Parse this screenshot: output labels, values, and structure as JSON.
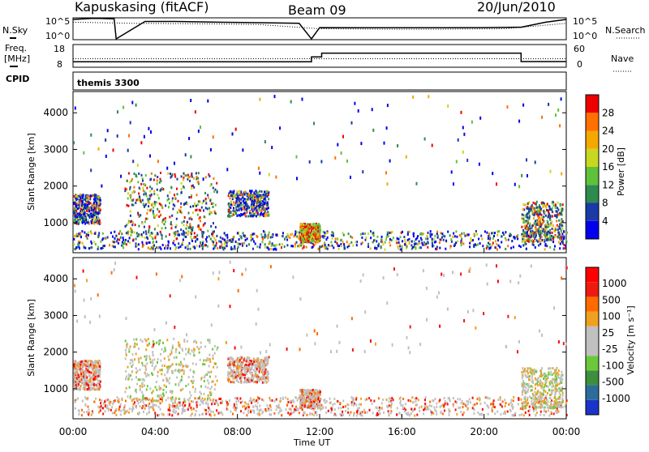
{
  "header": {
    "station": "Kapuskasing (fitACF)",
    "beam": "Beam 09",
    "date": "20/Jun/2010"
  },
  "top_panels": {
    "nsky_label": "N.Sky",
    "nsearch_label": "N.Search",
    "freq_label": "Freq.",
    "freq_unit": "[MHz]",
    "nave_label": "Nave",
    "cpid_label": "CPID",
    "cpid_value": "themis 3300",
    "noise_ticks": [
      "10^5",
      "10^0"
    ],
    "freq_ticks": [
      "18",
      "8"
    ],
    "nave_ticks": [
      "60",
      "0"
    ]
  },
  "colors": {
    "frame": "#000000",
    "power_scale": [
      "#0000ee",
      "#1a3aa8",
      "#2e8a4e",
      "#5fc23a",
      "#c8d820",
      "#f7a800",
      "#ff7000",
      "#ee0000"
    ],
    "velocity_scale": [
      "#1a34c8",
      "#2c6c9c",
      "#3d8f3d",
      "#6bc83a",
      "#c0c0c0",
      "#c0c0c0",
      "#f0a020",
      "#ff6a00",
      "#ee1a10",
      "#ff0000"
    ]
  },
  "chart_data": [
    {
      "type": "heatmap",
      "title": "",
      "ylabel": "Slant Range [km]",
      "xlabel": "",
      "quantity": "Power",
      "colorbar_label": "Power [dB]",
      "colorbar_ticks": [
        "28",
        "24",
        "20",
        "16",
        "12",
        "8",
        "4"
      ],
      "ylim": [
        180,
        4580
      ],
      "yticks": [
        "4000",
        "3000",
        "2000",
        "1000"
      ],
      "xlim": [
        0,
        24
      ],
      "xticks": [
        "00:00",
        "04:00",
        "08:00",
        "12:00",
        "16:00",
        "20:00",
        "00:00"
      ],
      "scatter_bands": [
        {
          "t_start": 0.0,
          "t_end": 1.3,
          "r_min": 1000,
          "r_max": 1800,
          "level": "low"
        },
        {
          "t_start": 2.5,
          "t_end": 7.0,
          "r_min": 700,
          "r_max": 2400,
          "level": "medium"
        },
        {
          "t_start": 7.5,
          "t_end": 9.5,
          "r_min": 1200,
          "r_max": 1900,
          "level": "low"
        },
        {
          "t_start": 11.0,
          "t_end": 12.0,
          "r_min": 500,
          "r_max": 1000,
          "level": "high"
        },
        {
          "t_start": 21.8,
          "t_end": 23.8,
          "r_min": 500,
          "r_max": 1600,
          "level": "medium"
        }
      ]
    },
    {
      "type": "heatmap",
      "title": "",
      "ylabel": "Slant Range [km]",
      "xlabel": "Time UT",
      "quantity": "Velocity",
      "colorbar_label": "Velocity [m s⁻¹]",
      "colorbar_ticks": [
        "1000",
        "500",
        "100",
        "25",
        "-25",
        "-100",
        "-500",
        "-1000"
      ],
      "ylim": [
        180,
        4580
      ],
      "yticks": [
        "4000",
        "3000",
        "2000",
        "1000"
      ],
      "xlim": [
        0,
        24
      ],
      "xticks": [
        "00:00",
        "04:00",
        "08:00",
        "12:00",
        "16:00",
        "20:00",
        "00:00"
      ]
    },
    {
      "type": "line",
      "title": "",
      "series": [
        {
          "name": "N.Sky",
          "x": [
            0,
            1,
            2,
            2.1,
            3.5,
            5,
            7,
            9,
            11,
            11.6,
            12,
            14,
            16,
            18,
            20,
            21.8,
            23,
            24
          ],
          "y": [
            100000.0,
            200000.0,
            150000.0,
            1,
            30000.0,
            30000.0,
            20000.0,
            15000.0,
            10000.0,
            1,
            800,
            700,
            700,
            700,
            800,
            1000,
            20000.0,
            100000.0
          ]
        },
        {
          "name": "N.Search",
          "x": [
            0,
            3,
            6,
            9,
            12,
            15,
            18,
            21,
            24
          ],
          "y": [
            20000.0,
            10000.0,
            8000.0,
            5000.0,
            400,
            300,
            300,
            400,
            10000.0
          ]
        }
      ]
    },
    {
      "type": "line",
      "title": "",
      "series": [
        {
          "name": "Freq.",
          "x": [
            0,
            11.6,
            11.6,
            12.1,
            12.1,
            21.8,
            21.8,
            24
          ],
          "y": [
            10.2,
            10.2,
            12.5,
            12.5,
            14.3,
            14.3,
            10.3,
            10.3
          ]
        },
        {
          "name": "Nave",
          "x": [
            0,
            24
          ],
          "y": [
            22,
            22
          ]
        }
      ]
    }
  ]
}
